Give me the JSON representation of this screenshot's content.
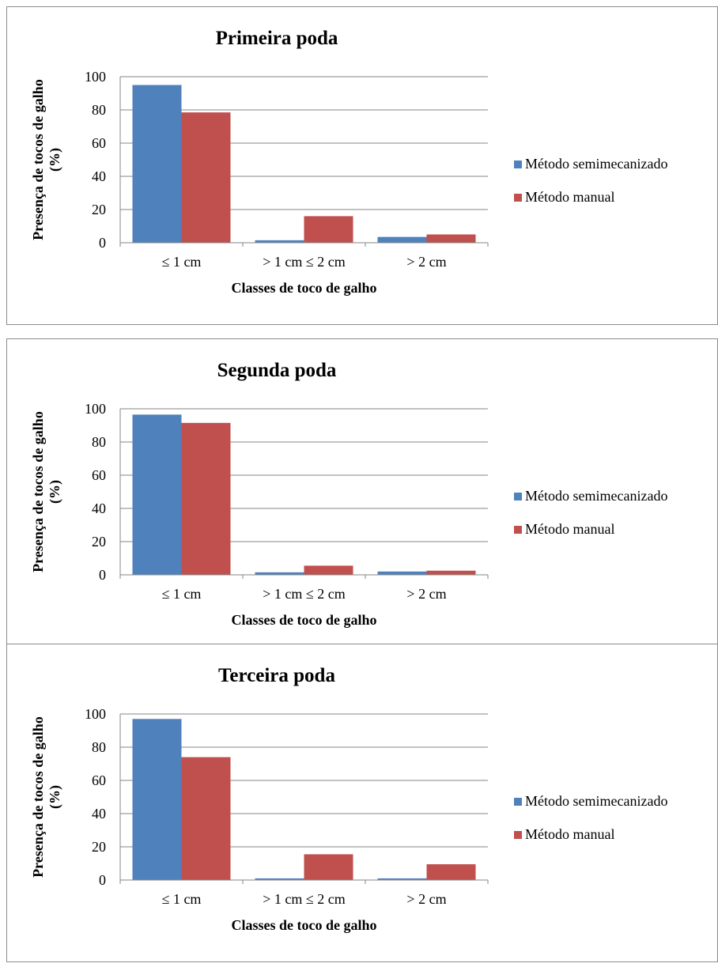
{
  "chart_data": [
    {
      "type": "bar",
      "title": "Primeira poda",
      "xlabel": "Classes de toco de galho",
      "ylabel": "Presença de tocos de galho (%)",
      "categories": [
        "≤ 1 cm",
        "> 1 cm ≤ 2 cm",
        "> 2 cm"
      ],
      "series": [
        {
          "name": "Método semimecanizado",
          "values": [
            95,
            1.5,
            3.5
          ]
        },
        {
          "name": "Método manual",
          "values": [
            78.5,
            16,
            5
          ]
        }
      ],
      "ylim": [
        0,
        100
      ],
      "yticks": [
        0,
        20,
        40,
        60,
        80,
        100
      ],
      "grid": true,
      "legend": "right"
    },
    {
      "type": "bar",
      "title": "Segunda poda",
      "xlabel": "Classes de toco de galho",
      "ylabel": "Presença de tocos de galho (%)",
      "categories": [
        "≤ 1 cm",
        "> 1 cm ≤ 2 cm",
        "> 2 cm"
      ],
      "series": [
        {
          "name": "Método semimecanizado",
          "values": [
            96.5,
            1.5,
            2
          ]
        },
        {
          "name": "Método manual",
          "values": [
            91.5,
            5.5,
            2.5
          ]
        }
      ],
      "ylim": [
        0,
        100
      ],
      "yticks": [
        0,
        20,
        40,
        60,
        80,
        100
      ],
      "grid": true,
      "legend": "right"
    },
    {
      "type": "bar",
      "title": "Terceira poda",
      "xlabel": "Classes de toco de galho",
      "ylabel": "Presença de tocos de galho (%)",
      "categories": [
        "≤ 1 cm",
        "> 1 cm ≤ 2 cm",
        "> 2 cm"
      ],
      "series": [
        {
          "name": "Método semimecanizado",
          "values": [
            97,
            1,
            1
          ]
        },
        {
          "name": "Método manual",
          "values": [
            74,
            15.5,
            9.5
          ]
        }
      ],
      "ylim": [
        0,
        100
      ],
      "yticks": [
        0,
        20,
        40,
        60,
        80,
        100
      ],
      "grid": true,
      "legend": "right"
    }
  ],
  "colors": {
    "series_1": "#4f81bd",
    "series_2": "#c0504d",
    "grid": "#868686",
    "border": "#8c8c8c"
  }
}
